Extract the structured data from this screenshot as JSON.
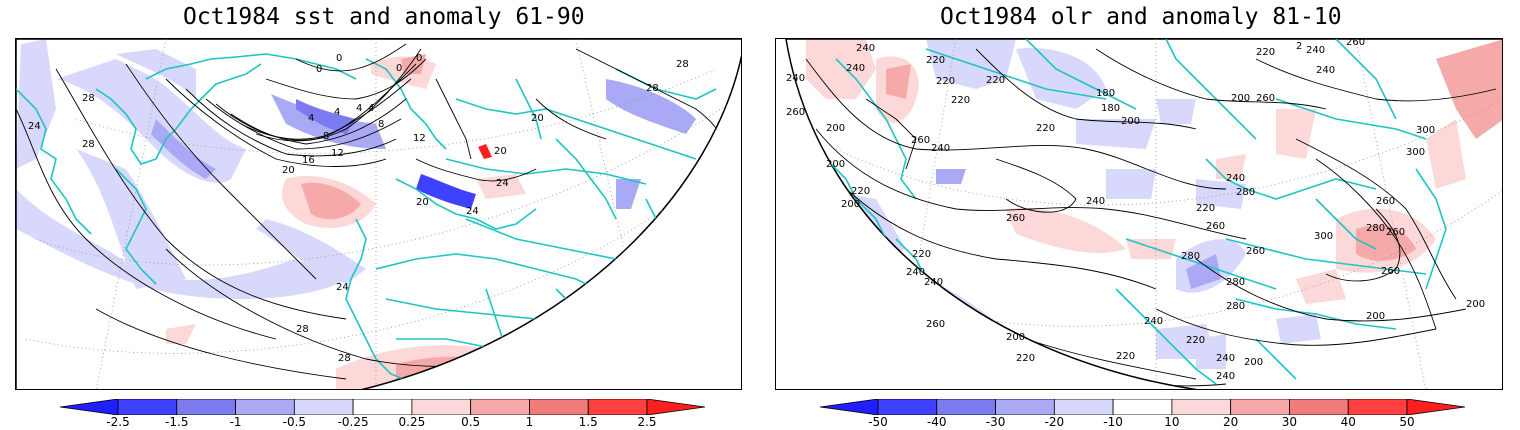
{
  "panels": [
    {
      "title": "Oct1984 sst and anomaly 61-90",
      "contour_labels": [
        "0",
        "0",
        "0",
        "0",
        "4",
        "4",
        "4",
        "4",
        "8",
        "8",
        "12",
        "12",
        "16",
        "20",
        "20",
        "20",
        "20",
        "24",
        "24",
        "24",
        "24",
        "28",
        "28",
        "28",
        "28",
        "28",
        "28"
      ],
      "colorbar": {
        "levels": [
          "-2.5",
          "-1.5",
          "-1",
          "-0.5",
          "-0.25",
          "0.25",
          "0.5",
          "1",
          "1.5",
          "2.5"
        ],
        "colors": [
          "#1f1fff",
          "#4040ff",
          "#7b7bef",
          "#a9a9f5",
          "#d8d8fc",
          "#ffffff",
          "#fcd8d8",
          "#f5a9a9",
          "#ef7b7b",
          "#ff4040",
          "#ff1f1f"
        ]
      }
    },
    {
      "title": "Oct1984 olr and anomaly 81-10",
      "contour_labels": [
        "240",
        "240",
        "240",
        "220",
        "220",
        "220",
        "220",
        "2",
        "240",
        "260",
        "260",
        "200",
        "180",
        "180",
        "200",
        "200",
        "220",
        "220",
        "260",
        "260",
        "240",
        "300",
        "300",
        "240",
        "200",
        "220",
        "200",
        "240",
        "240",
        "260",
        "260",
        "260",
        "220",
        "280",
        "280",
        "280",
        "280",
        "300",
        "260",
        "280",
        "260",
        "240",
        "240",
        "260",
        "220",
        "200",
        "220",
        "200",
        "220",
        "240",
        "240",
        "200",
        "260",
        "200",
        "220",
        "240"
      ],
      "colorbar": {
        "levels": [
          "-50",
          "-40",
          "-30",
          "-20",
          "-10",
          "10",
          "20",
          "30",
          "40",
          "50"
        ],
        "colors": [
          "#1f1fff",
          "#4040ff",
          "#7b7bef",
          "#a9a9f5",
          "#d8d8fc",
          "#ffffff",
          "#fcd8d8",
          "#f5a9a9",
          "#ef7b7b",
          "#ff4040",
          "#ff1f1f"
        ]
      }
    }
  ]
}
